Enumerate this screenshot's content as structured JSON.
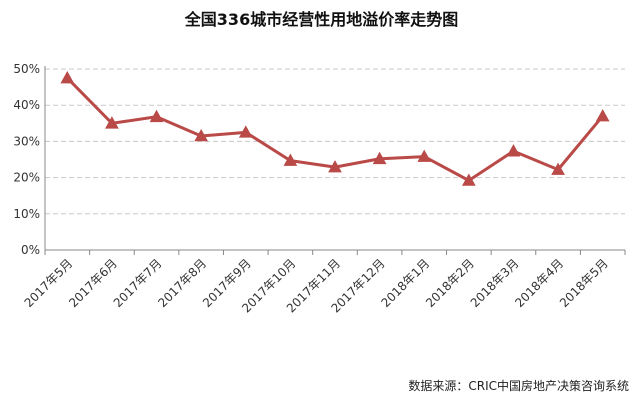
{
  "title": "全国336城市经营性用地溢价率走势图",
  "source": "数据来源：CRIC中国房地产决策咨询系统",
  "chart_data": {
    "type": "line",
    "title": "全国336城市经营性用地溢价率走势图",
    "categories": [
      "2017年5月",
      "2017年6月",
      "2017年7月",
      "2017年8月",
      "2017年9月",
      "2017年10月",
      "2017年11月",
      "2017年12月",
      "2018年1月",
      "2018年2月",
      "2018年3月",
      "2018年4月",
      "2018年5月"
    ],
    "series": [
      {
        "values": [
          47.5,
          35.0,
          36.8,
          31.5,
          32.5,
          24.7,
          22.9,
          25.2,
          25.8,
          19.2,
          27.3,
          22.2,
          37.0
        ]
      }
    ],
    "yticks": [
      "0%",
      "10%",
      "20%",
      "30%",
      "40%",
      "50%"
    ],
    "ylim": [
      0,
      50
    ],
    "grid": true,
    "line_color": "#b94a48",
    "marker": "triangle"
  }
}
